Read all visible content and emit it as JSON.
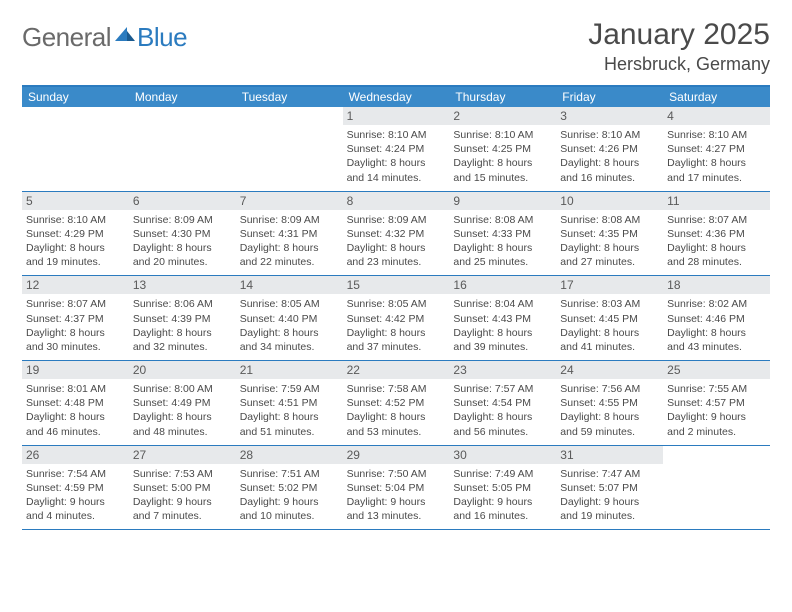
{
  "logo": {
    "general": "General",
    "blue": "Blue"
  },
  "title": "January 2025",
  "location": "Hersbruck, Germany",
  "colors": {
    "header_bar": "#3a8ac9",
    "border": "#2b7bbf",
    "daynum_bg": "#e7e9eb",
    "text": "#4a4a4a",
    "logo_gray": "#6a6a6a",
    "logo_blue": "#2b7bbf"
  },
  "weekdays": [
    "Sunday",
    "Monday",
    "Tuesday",
    "Wednesday",
    "Thursday",
    "Friday",
    "Saturday"
  ],
  "weeks": [
    [
      null,
      null,
      null,
      {
        "n": "1",
        "sr": "8:10 AM",
        "ss": "4:24 PM",
        "dl": "8 hours and 14 minutes."
      },
      {
        "n": "2",
        "sr": "8:10 AM",
        "ss": "4:25 PM",
        "dl": "8 hours and 15 minutes."
      },
      {
        "n": "3",
        "sr": "8:10 AM",
        "ss": "4:26 PM",
        "dl": "8 hours and 16 minutes."
      },
      {
        "n": "4",
        "sr": "8:10 AM",
        "ss": "4:27 PM",
        "dl": "8 hours and 17 minutes."
      }
    ],
    [
      {
        "n": "5",
        "sr": "8:10 AM",
        "ss": "4:29 PM",
        "dl": "8 hours and 19 minutes."
      },
      {
        "n": "6",
        "sr": "8:09 AM",
        "ss": "4:30 PM",
        "dl": "8 hours and 20 minutes."
      },
      {
        "n": "7",
        "sr": "8:09 AM",
        "ss": "4:31 PM",
        "dl": "8 hours and 22 minutes."
      },
      {
        "n": "8",
        "sr": "8:09 AM",
        "ss": "4:32 PM",
        "dl": "8 hours and 23 minutes."
      },
      {
        "n": "9",
        "sr": "8:08 AM",
        "ss": "4:33 PM",
        "dl": "8 hours and 25 minutes."
      },
      {
        "n": "10",
        "sr": "8:08 AM",
        "ss": "4:35 PM",
        "dl": "8 hours and 27 minutes."
      },
      {
        "n": "11",
        "sr": "8:07 AM",
        "ss": "4:36 PM",
        "dl": "8 hours and 28 minutes."
      }
    ],
    [
      {
        "n": "12",
        "sr": "8:07 AM",
        "ss": "4:37 PM",
        "dl": "8 hours and 30 minutes."
      },
      {
        "n": "13",
        "sr": "8:06 AM",
        "ss": "4:39 PM",
        "dl": "8 hours and 32 minutes."
      },
      {
        "n": "14",
        "sr": "8:05 AM",
        "ss": "4:40 PM",
        "dl": "8 hours and 34 minutes."
      },
      {
        "n": "15",
        "sr": "8:05 AM",
        "ss": "4:42 PM",
        "dl": "8 hours and 37 minutes."
      },
      {
        "n": "16",
        "sr": "8:04 AM",
        "ss": "4:43 PM",
        "dl": "8 hours and 39 minutes."
      },
      {
        "n": "17",
        "sr": "8:03 AM",
        "ss": "4:45 PM",
        "dl": "8 hours and 41 minutes."
      },
      {
        "n": "18",
        "sr": "8:02 AM",
        "ss": "4:46 PM",
        "dl": "8 hours and 43 minutes."
      }
    ],
    [
      {
        "n": "19",
        "sr": "8:01 AM",
        "ss": "4:48 PM",
        "dl": "8 hours and 46 minutes."
      },
      {
        "n": "20",
        "sr": "8:00 AM",
        "ss": "4:49 PM",
        "dl": "8 hours and 48 minutes."
      },
      {
        "n": "21",
        "sr": "7:59 AM",
        "ss": "4:51 PM",
        "dl": "8 hours and 51 minutes."
      },
      {
        "n": "22",
        "sr": "7:58 AM",
        "ss": "4:52 PM",
        "dl": "8 hours and 53 minutes."
      },
      {
        "n": "23",
        "sr": "7:57 AM",
        "ss": "4:54 PM",
        "dl": "8 hours and 56 minutes."
      },
      {
        "n": "24",
        "sr": "7:56 AM",
        "ss": "4:55 PM",
        "dl": "8 hours and 59 minutes."
      },
      {
        "n": "25",
        "sr": "7:55 AM",
        "ss": "4:57 PM",
        "dl": "9 hours and 2 minutes."
      }
    ],
    [
      {
        "n": "26",
        "sr": "7:54 AM",
        "ss": "4:59 PM",
        "dl": "9 hours and 4 minutes."
      },
      {
        "n": "27",
        "sr": "7:53 AM",
        "ss": "5:00 PM",
        "dl": "9 hours and 7 minutes."
      },
      {
        "n": "28",
        "sr": "7:51 AM",
        "ss": "5:02 PM",
        "dl": "9 hours and 10 minutes."
      },
      {
        "n": "29",
        "sr": "7:50 AM",
        "ss": "5:04 PM",
        "dl": "9 hours and 13 minutes."
      },
      {
        "n": "30",
        "sr": "7:49 AM",
        "ss": "5:05 PM",
        "dl": "9 hours and 16 minutes."
      },
      {
        "n": "31",
        "sr": "7:47 AM",
        "ss": "5:07 PM",
        "dl": "9 hours and 19 minutes."
      },
      null
    ]
  ],
  "labels": {
    "sunrise": "Sunrise:",
    "sunset": "Sunset:",
    "daylight": "Daylight:"
  }
}
